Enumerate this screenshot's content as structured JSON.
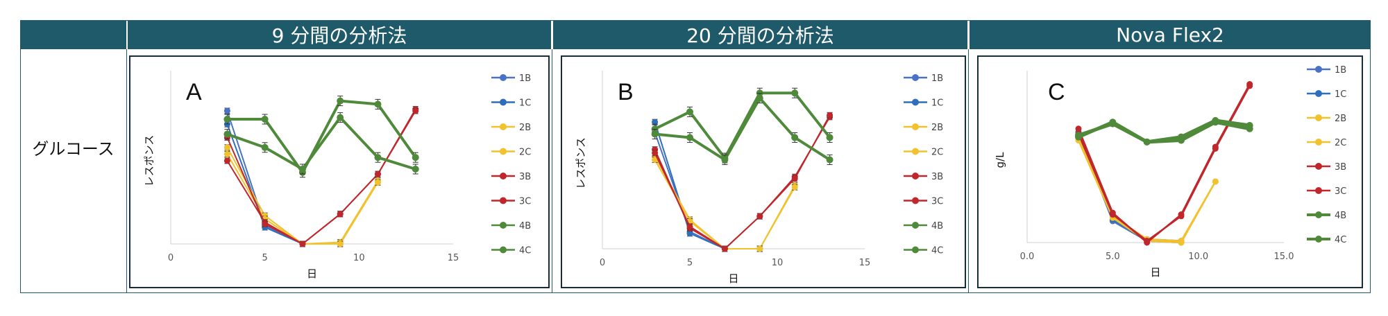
{
  "header": {
    "col_a": "9 分間の分析法",
    "col_b": "20 分間の分析法",
    "col_c": "Nova Flex2"
  },
  "row_label": "グルコース",
  "colors": {
    "header_bg": "#1f5a6a",
    "1B": "#4a72c4",
    "1C": "#2e6fbd",
    "2B": "#f2c12e",
    "2C": "#f2c12e",
    "3B": "#c0272d",
    "3C": "#c0272d",
    "4B": "#4f8a3a",
    "4C": "#4f8a3a"
  },
  "chart_data": [
    {
      "type": "line",
      "panel_label": "A",
      "xlabel": "日",
      "ylabel": "レスポンス",
      "xlim": [
        0,
        15
      ],
      "xticks": [
        "0",
        "5",
        "10",
        "15"
      ],
      "legend": [
        "1B",
        "1C",
        "2B",
        "2C",
        "3B",
        "3C",
        "4B",
        "4C"
      ],
      "legend_placement": "right",
      "ylim": [
        0,
        100
      ],
      "series": [
        {
          "name": "1B",
          "x": [
            3,
            5,
            7,
            9
          ],
          "y": [
            80,
            11,
            0,
            0
          ]
        },
        {
          "name": "1C",
          "x": [
            3,
            5,
            7,
            9
          ],
          "y": [
            72,
            10,
            0,
            0
          ]
        },
        {
          "name": "2B",
          "x": [
            3,
            5,
            7,
            9,
            11
          ],
          "y": [
            58,
            17,
            0,
            1,
            38
          ]
        },
        {
          "name": "2C",
          "x": [
            3,
            5,
            7,
            9,
            11
          ],
          "y": [
            54,
            15,
            0,
            0,
            37
          ]
        },
        {
          "name": "3B",
          "x": [
            3,
            5,
            7,
            9,
            11,
            13
          ],
          "y": [
            50,
            13,
            0,
            18,
            42,
            81
          ]
        },
        {
          "name": "3C",
          "x": [
            3,
            5,
            7,
            9,
            11,
            13
          ],
          "y": [
            64,
            12,
            0,
            18,
            42,
            80
          ]
        },
        {
          "name": "4B",
          "x": [
            3,
            5,
            7,
            9,
            11,
            13
          ],
          "y": [
            75,
            75,
            43,
            86,
            84,
            52
          ]
        },
        {
          "name": "4C",
          "x": [
            3,
            5,
            7,
            9,
            11,
            13
          ],
          "y": [
            66,
            58,
            45,
            76,
            52,
            45
          ]
        }
      ]
    },
    {
      "type": "line",
      "panel_label": "B",
      "xlabel": "日",
      "ylabel": "レスポンス",
      "xlim": [
        0,
        15
      ],
      "xticks": [
        "0",
        "5",
        "10",
        "15"
      ],
      "legend": [
        "1B",
        "1C",
        "2B",
        "2C",
        "3B",
        "3C",
        "4B",
        "4C"
      ],
      "legend_placement": "right",
      "ylim": [
        0,
        100
      ],
      "series": [
        {
          "name": "1B",
          "x": [
            3,
            5,
            7,
            9
          ],
          "y": [
            68,
            10,
            0,
            0
          ]
        },
        {
          "name": "1C",
          "x": [
            3,
            5,
            7,
            9
          ],
          "y": [
            74,
            9,
            0,
            0
          ]
        },
        {
          "name": "2B",
          "x": [
            3,
            5,
            7,
            9,
            11
          ],
          "y": [
            54,
            17,
            0,
            0,
            37
          ]
        },
        {
          "name": "2C",
          "x": [
            3,
            5,
            7,
            9,
            11
          ],
          "y": [
            52,
            16,
            0,
            0,
            36
          ]
        },
        {
          "name": "3B",
          "x": [
            3,
            5,
            7,
            9,
            11,
            13
          ],
          "y": [
            58,
            12,
            0,
            19,
            42,
            77
          ]
        },
        {
          "name": "3C",
          "x": [
            3,
            5,
            7,
            9,
            11,
            13
          ],
          "y": [
            56,
            13,
            0,
            19,
            41,
            78
          ]
        },
        {
          "name": "4B",
          "x": [
            3,
            5,
            7,
            9,
            11,
            13
          ],
          "y": [
            70,
            80,
            53,
            91,
            91,
            65
          ]
        },
        {
          "name": "4C",
          "x": [
            3,
            5,
            7,
            9,
            11,
            13
          ],
          "y": [
            67,
            65,
            52,
            88,
            65,
            52
          ]
        }
      ]
    },
    {
      "type": "line",
      "panel_label": "C",
      "xlabel": "日",
      "ylabel": "g/L",
      "xlim": [
        0,
        15
      ],
      "xticks": [
        "0.0",
        "5.0",
        "10.0",
        "15.0"
      ],
      "legend": [
        "1B",
        "1C",
        "2B",
        "2C",
        "3B",
        "3C",
        "4B",
        "4C"
      ],
      "legend_placement": "right",
      "ylim": [
        0,
        100
      ],
      "series": [
        {
          "name": "1B",
          "x": [
            3,
            5,
            7,
            9
          ],
          "y": [
            66,
            13,
            1,
            0
          ]
        },
        {
          "name": "1C",
          "x": [
            3,
            5,
            7,
            9
          ],
          "y": [
            67,
            14,
            2,
            1
          ]
        },
        {
          "name": "2B",
          "x": [
            3,
            5,
            7,
            9,
            11
          ],
          "y": [
            63,
            16,
            2,
            1,
            37
          ]
        },
        {
          "name": "2C",
          "x": [
            3,
            5,
            7,
            9,
            11
          ],
          "y": [
            62,
            15,
            1,
            0,
            37
          ]
        },
        {
          "name": "3B",
          "x": [
            3,
            5,
            7,
            9,
            11,
            13
          ],
          "y": [
            69,
            18,
            0,
            17,
            58,
            96
          ]
        },
        {
          "name": "3C",
          "x": [
            3,
            5,
            7,
            9,
            11,
            13
          ],
          "y": [
            66,
            17,
            1,
            16,
            57,
            95
          ]
        },
        {
          "name": "4B",
          "x": [
            3,
            5,
            7,
            9,
            11,
            13
          ],
          "y": [
            64,
            73,
            61,
            62,
            73,
            69
          ]
        },
        {
          "name": "4C",
          "x": [
            3,
            5,
            7,
            9,
            11,
            13
          ],
          "y": [
            65,
            72,
            61,
            64,
            74,
            71
          ]
        }
      ]
    }
  ]
}
